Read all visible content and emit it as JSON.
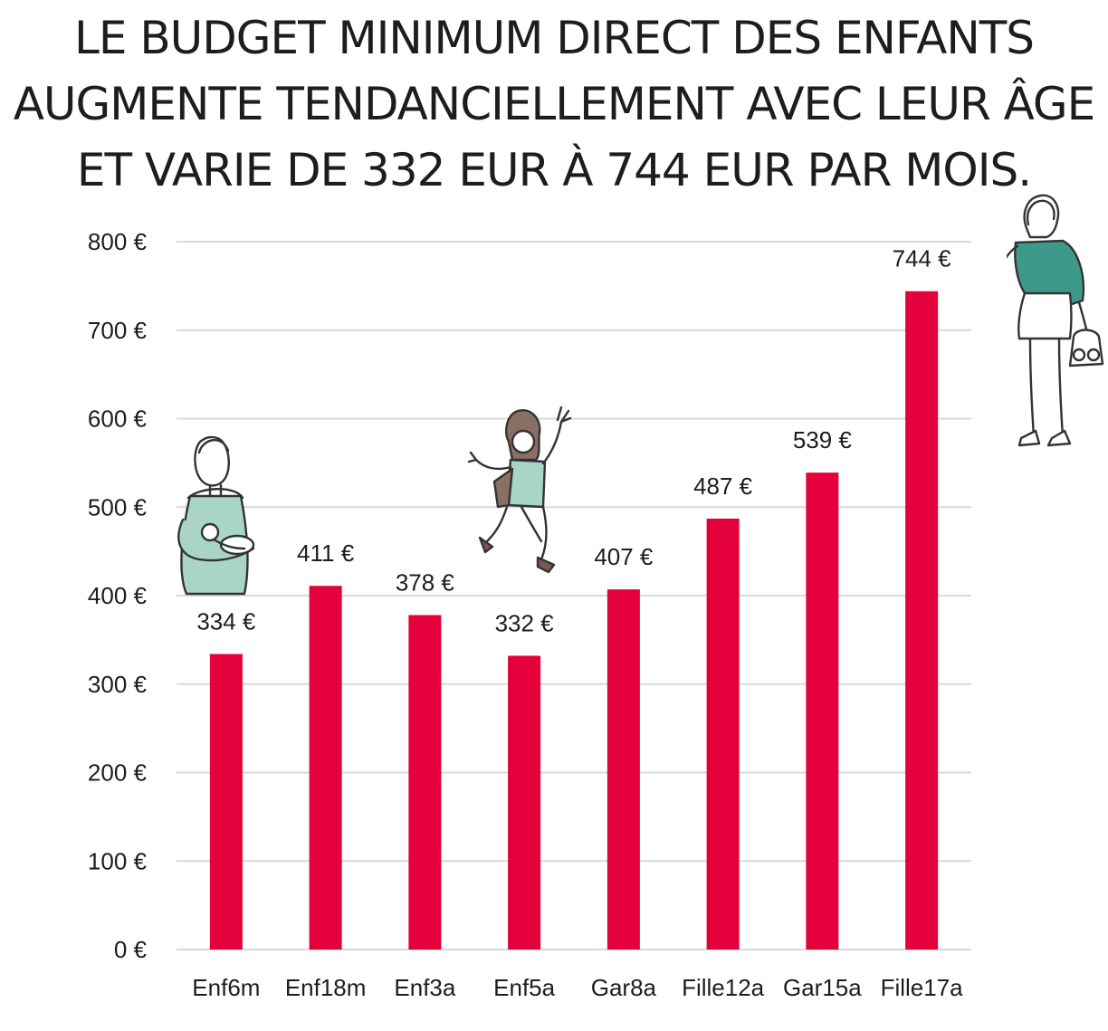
{
  "chart_data": {
    "type": "bar",
    "title_lines": [
      "LE BUDGET MINIMUM DIRECT DES ENFANTS",
      "AUGMENTE TENDANCIELLEMENT AVEC LEUR ÂGE",
      "ET VARIE DE 332 EUR À 744 EUR PAR MOIS."
    ],
    "categories": [
      "Enf6m",
      "Enf18m",
      "Enf3a",
      "Enf5a",
      "Gar8a",
      "Fille12a",
      "Gar15a",
      "Fille17a"
    ],
    "values": [
      334,
      411,
      378,
      332,
      407,
      487,
      539,
      744
    ],
    "value_labels": [
      "334 €",
      "411 €",
      "378 €",
      "332 €",
      "407 €",
      "487 €",
      "539 €",
      "744 €"
    ],
    "yticks": [
      0,
      100,
      200,
      300,
      400,
      500,
      600,
      700,
      800
    ],
    "ytick_labels": [
      "0 €",
      "100 €",
      "200 €",
      "300 €",
      "400 €",
      "500 €",
      "600 €",
      "700 €",
      "800 €"
    ],
    "ylim": [
      0,
      800
    ],
    "grid": true,
    "xlabel": "",
    "ylabel": "",
    "bar_color": "#e4003a",
    "grid_color": "#d9d9d9"
  },
  "illustrations": {
    "colors": {
      "mint": "#a9d5c6",
      "teal": "#3d9a8b",
      "skin": "#ffffff",
      "hair": "#8a6f64",
      "shoe": "#7a5a50"
    },
    "icons": [
      "boy-with-baby-icon",
      "jumping-girl-icon",
      "teen-girl-icon"
    ]
  }
}
